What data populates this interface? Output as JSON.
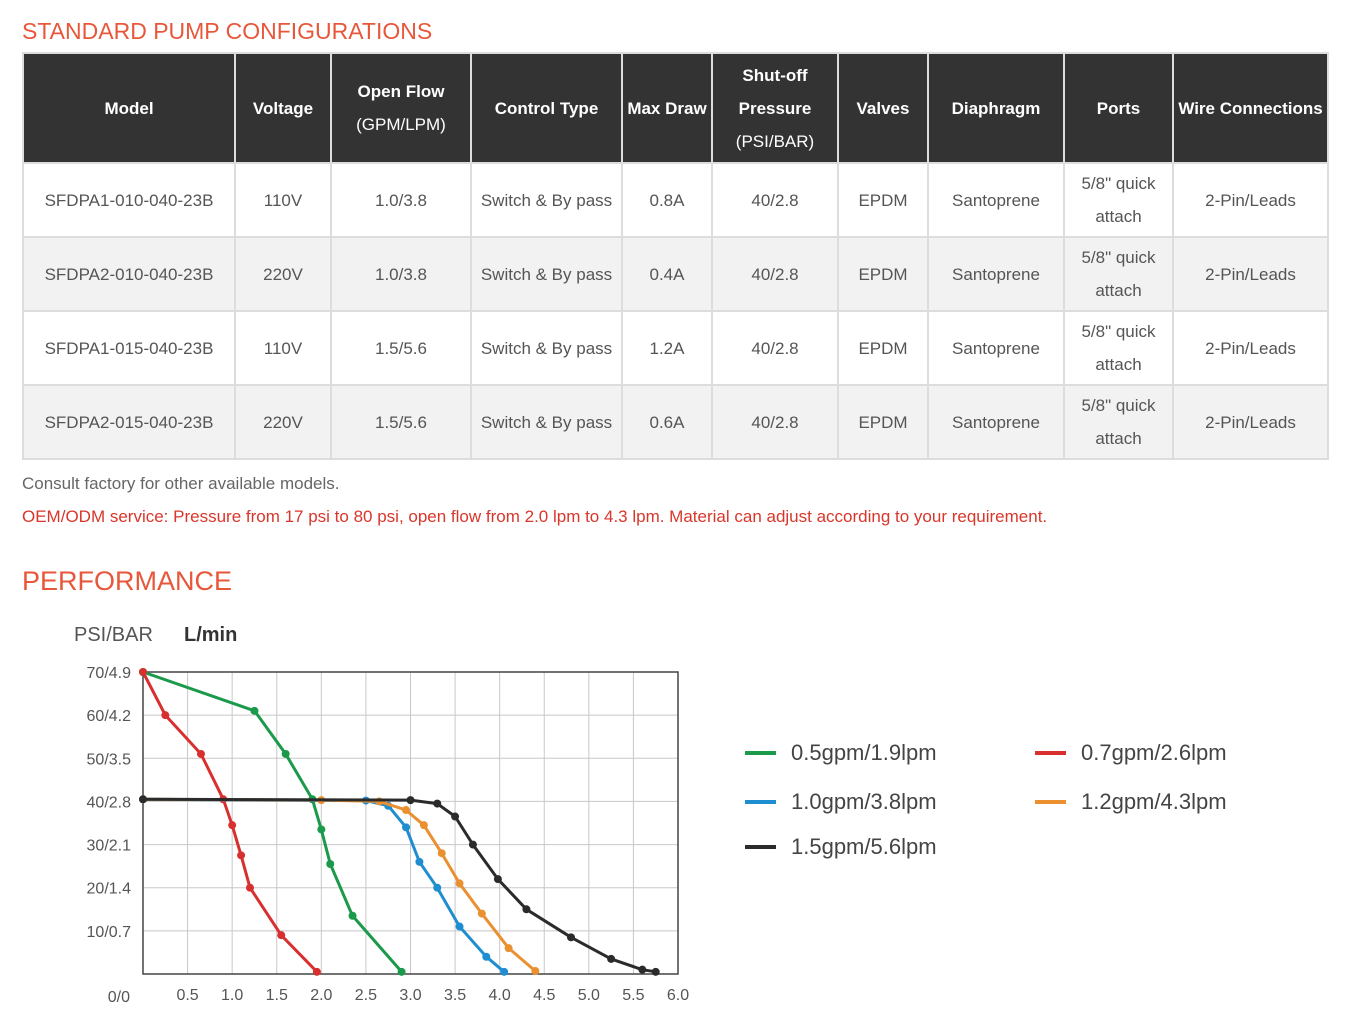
{
  "titles": {
    "configurations": "STANDARD PUMP CONFIGURATIONS",
    "performance": "PERFORMANCE"
  },
  "table": {
    "headers": [
      {
        "main": "Model",
        "sub": ""
      },
      {
        "main": "Voltage",
        "sub": ""
      },
      {
        "main": "Open Flow",
        "sub": "(GPM/LPM)"
      },
      {
        "main": "Control Type",
        "sub": ""
      },
      {
        "main": "Max Draw",
        "sub": ""
      },
      {
        "main": "Shut-off Pressure",
        "sub": "(PSI/BAR)"
      },
      {
        "main": "Valves",
        "sub": ""
      },
      {
        "main": "Diaphragm",
        "sub": ""
      },
      {
        "main": "Ports",
        "sub": ""
      },
      {
        "main": "Wire Connections",
        "sub": ""
      }
    ],
    "rows": [
      [
        "SFDPA1-010-040-23B",
        "110V",
        "1.0/3.8",
        "Switch & By pass",
        "0.8A",
        "40/2.8",
        "EPDM",
        "Santoprene",
        "5/8\" quick attach",
        "2-Pin/Leads"
      ],
      [
        "SFDPA2-010-040-23B",
        "220V",
        "1.0/3.8",
        "Switch & By pass",
        "0.4A",
        "40/2.8",
        "EPDM",
        "Santoprene",
        "5/8\" quick attach",
        "2-Pin/Leads"
      ],
      [
        "SFDPA1-015-040-23B",
        "110V",
        "1.5/5.6",
        "Switch & By pass",
        "1.2A",
        "40/2.8",
        "EPDM",
        "Santoprene",
        "5/8\" quick attach",
        "2-Pin/Leads"
      ],
      [
        "SFDPA2-015-040-23B",
        "220V",
        "1.5/5.6",
        "Switch & By pass",
        "0.6A",
        "40/2.8",
        "EPDM",
        "Santoprene",
        "5/8\" quick attach",
        "2-Pin/Leads"
      ]
    ]
  },
  "notes": {
    "consult": "Consult factory for other available models.",
    "oem": "OEM/ODM service: Pressure from 17 psi to 80 psi, open flow from 2.0 lpm to 4.3 lpm. Material can adjust according to your requirement."
  },
  "colors": {
    "title": "#e8573a",
    "oem_note": "#d9362b",
    "header_bg": "#333333"
  },
  "chart_data": {
    "type": "line",
    "ylabel": "PSI/BAR",
    "xlabel": "L/min",
    "xlim": [
      0,
      6.0
    ],
    "ylim": [
      0,
      70
    ],
    "grid": true,
    "legend_position": "right",
    "x_ticks": [
      "0.5",
      "1.0",
      "1.5",
      "2.0",
      "2.5",
      "3.0",
      "3.5",
      "4.0",
      "4.5",
      "5.0",
      "5.5",
      "6.0"
    ],
    "x_tick_values": [
      0.5,
      1.0,
      1.5,
      2.0,
      2.5,
      3.0,
      3.5,
      4.0,
      4.5,
      5.0,
      5.5,
      6.0
    ],
    "y_ticks": [
      "0/0",
      "10/0.7",
      "20/1.4",
      "30/2.1",
      "40/2.8",
      "50/3.5",
      "60/4.2",
      "70/4.9"
    ],
    "y_tick_values": [
      0,
      10,
      20,
      30,
      40,
      50,
      60,
      70
    ],
    "series": [
      {
        "name": "0.5gpm/1.9lpm",
        "color": "#1a9a4a",
        "points": [
          [
            0,
            70
          ],
          [
            1.25,
            61
          ],
          [
            1.6,
            51
          ],
          [
            1.9,
            40.5
          ],
          [
            2.0,
            33.5
          ],
          [
            2.1,
            25.5
          ],
          [
            2.35,
            13.5
          ],
          [
            2.9,
            0.5
          ]
        ]
      },
      {
        "name": "0.7gpm/2.6lpm",
        "color": "#d8302f",
        "points": [
          [
            0,
            70
          ],
          [
            0.25,
            60
          ],
          [
            0.65,
            51
          ],
          [
            0.9,
            40.5
          ],
          [
            1.0,
            34.5
          ],
          [
            1.1,
            27.5
          ],
          [
            1.2,
            20
          ],
          [
            1.55,
            9
          ],
          [
            1.95,
            0.5
          ]
        ]
      },
      {
        "name": "1.0gpm/3.8lpm",
        "color": "#1f8ed0",
        "points": [
          [
            0,
            40.5
          ],
          [
            2.5,
            40.2
          ],
          [
            2.75,
            39
          ],
          [
            2.95,
            34
          ],
          [
            3.1,
            26
          ],
          [
            3.3,
            20
          ],
          [
            3.55,
            11
          ],
          [
            3.85,
            4
          ],
          [
            4.05,
            0.5
          ]
        ]
      },
      {
        "name": "1.2gpm/4.3lpm",
        "color": "#ea9030",
        "points": [
          [
            0,
            40.5
          ],
          [
            2.0,
            40.3
          ],
          [
            2.65,
            40
          ],
          [
            2.95,
            38
          ],
          [
            3.15,
            34.5
          ],
          [
            3.35,
            28
          ],
          [
            3.55,
            21
          ],
          [
            3.8,
            14
          ],
          [
            4.1,
            6
          ],
          [
            4.4,
            0.7
          ]
        ]
      },
      {
        "name": "1.5gpm/5.6lpm",
        "color": "#2b2b2b",
        "points": [
          [
            0,
            40.5
          ],
          [
            3.0,
            40.3
          ],
          [
            3.3,
            39.5
          ],
          [
            3.5,
            36.5
          ],
          [
            3.7,
            30
          ],
          [
            3.98,
            22
          ],
          [
            4.3,
            15
          ],
          [
            4.8,
            8.5
          ],
          [
            5.25,
            3.5
          ],
          [
            5.6,
            1.0
          ],
          [
            5.75,
            0.5
          ]
        ]
      }
    ]
  }
}
